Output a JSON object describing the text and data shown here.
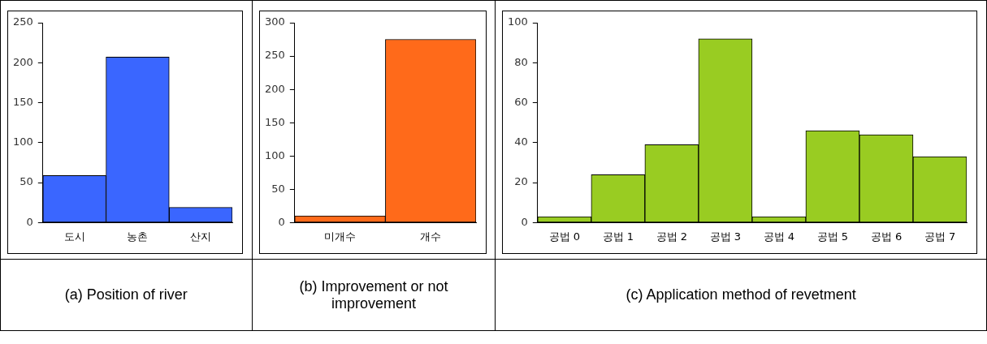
{
  "chart_data": [
    {
      "type": "bar",
      "title": "(a) Position of river",
      "categories": [
        "도시",
        "농촌",
        "산지"
      ],
      "values": [
        59,
        207,
        19
      ],
      "color": "#3a66ff",
      "ylim": [
        0,
        250
      ],
      "yticks": [
        0,
        50,
        100,
        150,
        200,
        250
      ],
      "grid": false,
      "legend": false
    },
    {
      "type": "bar",
      "title": "(b) Improvement or not improvement",
      "categories": [
        "미개수",
        "개수"
      ],
      "values": [
        10,
        275
      ],
      "color": "#ff6a1a",
      "ylim": [
        0,
        300
      ],
      "yticks": [
        0,
        50,
        100,
        150,
        200,
        250,
        300
      ],
      "grid": false,
      "legend": false
    },
    {
      "type": "bar",
      "title": "(c) Application method of revetment",
      "categories": [
        "공법 0",
        "공법 1",
        "공법 2",
        "공법 3",
        "공법 4",
        "공법 5",
        "공법 6",
        "공법 7"
      ],
      "values": [
        3,
        24,
        39,
        92,
        3,
        46,
        44,
        33
      ],
      "color": "#99cc22",
      "ylim": [
        0,
        100
      ],
      "yticks": [
        0,
        20,
        40,
        60,
        80,
        100
      ],
      "grid": false,
      "legend": false
    }
  ]
}
